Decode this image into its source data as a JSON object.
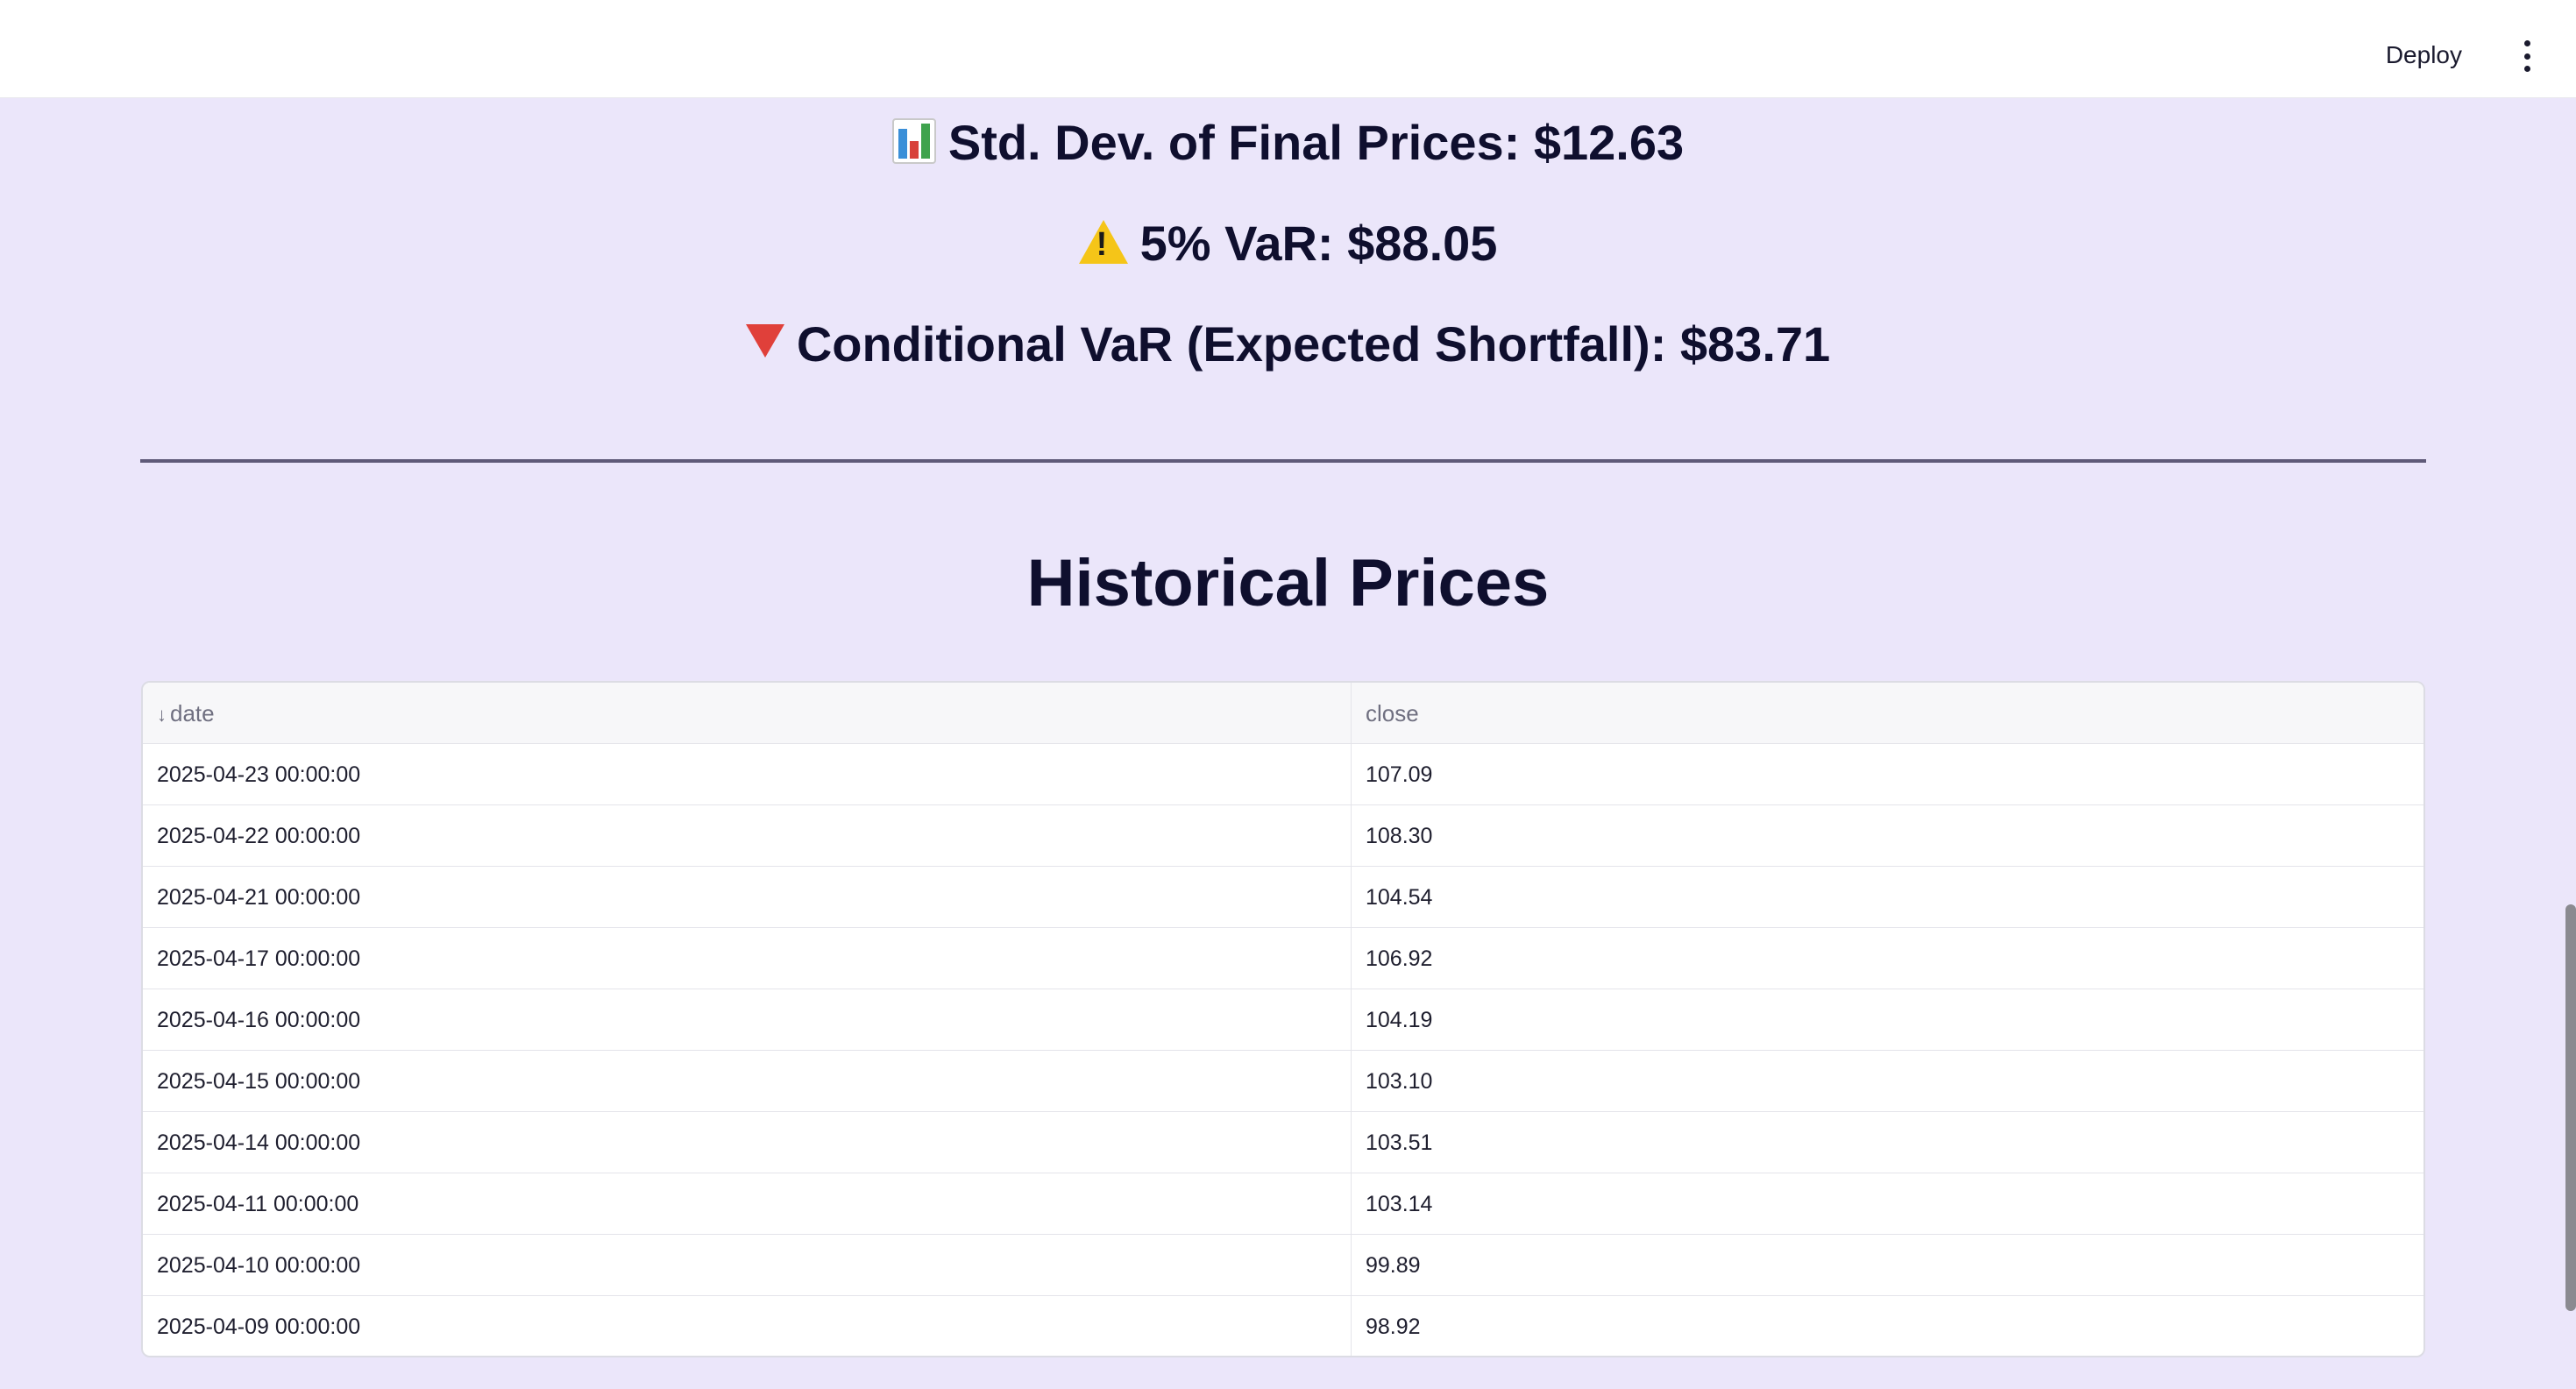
{
  "header": {
    "deploy_label": "Deploy",
    "menu_icon": "more-vertical-icon"
  },
  "stats": {
    "std_dev": {
      "icon": "bar-chart-icon",
      "text": "Std. Dev. of Final Prices: $12.63"
    },
    "var": {
      "icon": "warning-icon",
      "text": "5% VaR: $88.05"
    },
    "cvar": {
      "icon": "down-triangle-icon",
      "text": "Conditional VaR (Expected Shortfall): $83.71"
    }
  },
  "section_title": "Historical Prices",
  "table": {
    "columns": [
      {
        "label": "date",
        "sort": "descending",
        "sort_icon": "arrow-down-icon",
        "sort_glyph": "↓"
      },
      {
        "label": "close"
      }
    ],
    "rows": [
      {
        "date": "2025-04-23 00:00:00",
        "close": "107.09"
      },
      {
        "date": "2025-04-22 00:00:00",
        "close": "108.30"
      },
      {
        "date": "2025-04-21 00:00:00",
        "close": "104.54"
      },
      {
        "date": "2025-04-17 00:00:00",
        "close": "106.92"
      },
      {
        "date": "2025-04-16 00:00:00",
        "close": "104.19"
      },
      {
        "date": "2025-04-15 00:00:00",
        "close": "103.10"
      },
      {
        "date": "2025-04-14 00:00:00",
        "close": "103.51"
      },
      {
        "date": "2025-04-11 00:00:00",
        "close": "103.14"
      },
      {
        "date": "2025-04-10 00:00:00",
        "close": "99.89"
      },
      {
        "date": "2025-04-09 00:00:00",
        "close": "98.92"
      }
    ]
  },
  "colors": {
    "page_background": "#ebe6fa",
    "text": "#0f0f2e",
    "warning": "#f5c518",
    "down": "#e0403a"
  }
}
